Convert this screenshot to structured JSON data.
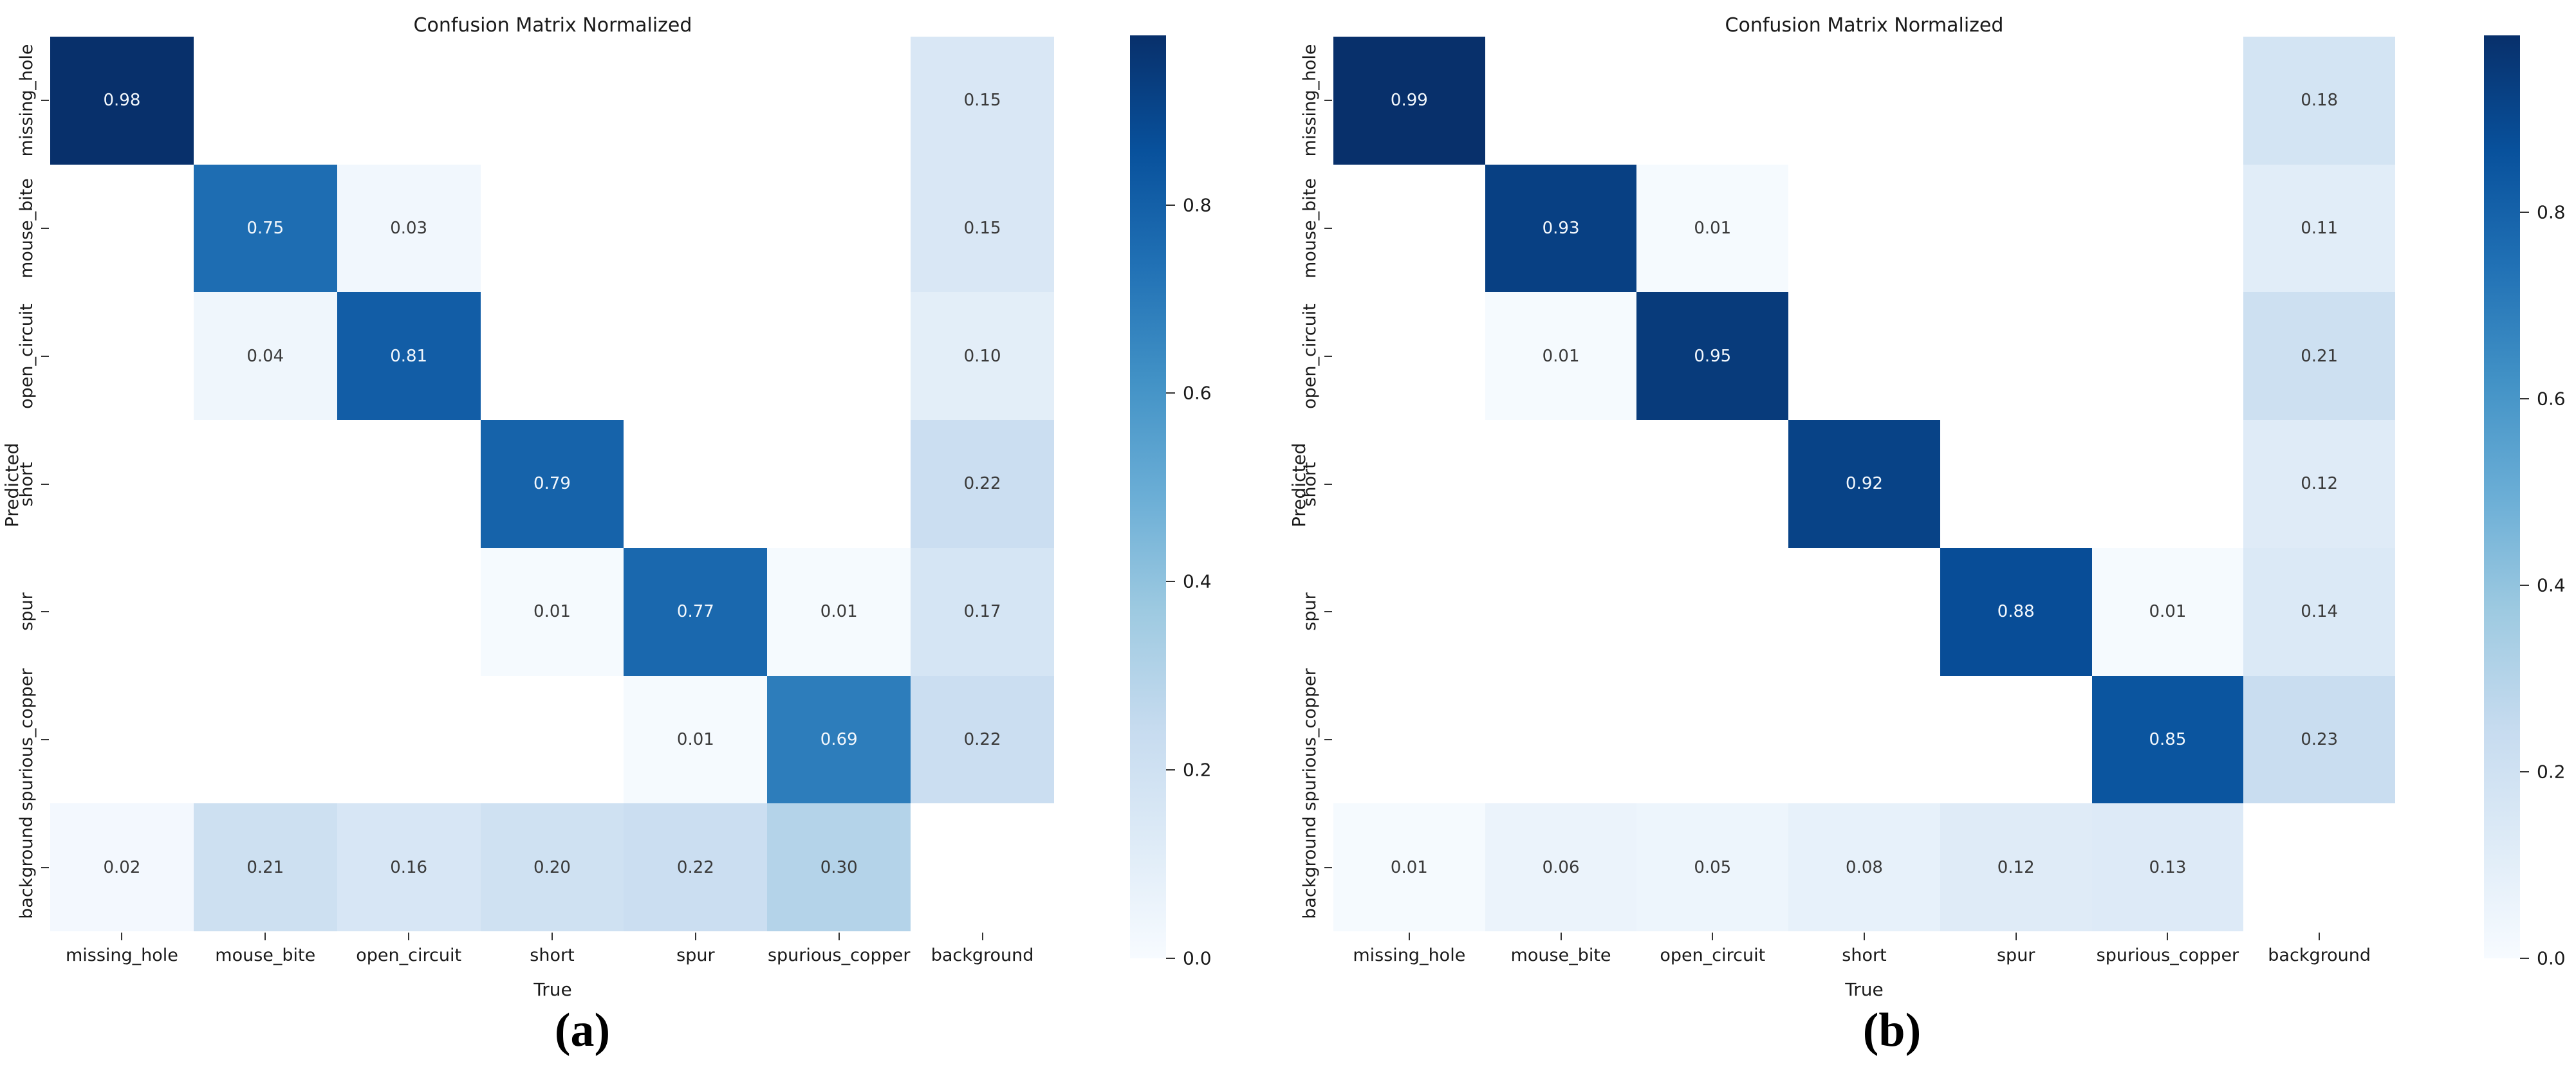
{
  "figure": {
    "caption_a": "(a)",
    "caption_b": "(b)"
  },
  "colormap_stops": [
    "#f7fbff",
    "#deebf7",
    "#c6dbef",
    "#9ecae1",
    "#6baed6",
    "#4292c6",
    "#2171b5",
    "#08519c",
    "#08306b"
  ],
  "chart_data": [
    {
      "type": "heatmap",
      "panel": "a",
      "title": "Confusion Matrix Normalized",
      "xlabel": "True",
      "ylabel": "Predicted",
      "categories": [
        "missing_hole",
        "mouse_bite",
        "open_circuit",
        "short",
        "spur",
        "spurious_copper",
        "background"
      ],
      "vmin": 0.0,
      "vmax": 0.98,
      "colorbar_ticks": [
        0.8,
        0.6,
        0.4,
        0.2,
        0.0
      ],
      "legend_position": "right",
      "grid": false,
      "matrix": [
        [
          0.98,
          null,
          null,
          null,
          null,
          null,
          0.15
        ],
        [
          null,
          0.75,
          0.03,
          null,
          null,
          null,
          0.15
        ],
        [
          null,
          0.04,
          0.81,
          null,
          null,
          null,
          0.1
        ],
        [
          null,
          null,
          null,
          0.79,
          null,
          null,
          0.22
        ],
        [
          null,
          null,
          null,
          0.01,
          0.77,
          0.01,
          0.17
        ],
        [
          null,
          null,
          null,
          null,
          0.01,
          0.69,
          0.22
        ],
        [
          0.02,
          0.21,
          0.16,
          0.2,
          0.22,
          0.3,
          null
        ]
      ]
    },
    {
      "type": "heatmap",
      "panel": "b",
      "title": "Confusion Matrix Normalized",
      "xlabel": "True",
      "ylabel": "Predicted",
      "categories": [
        "missing_hole",
        "mouse_bite",
        "open_circuit",
        "short",
        "spur",
        "spurious_copper",
        "background"
      ],
      "vmin": 0.0,
      "vmax": 0.99,
      "colorbar_ticks": [
        0.8,
        0.6,
        0.4,
        0.2,
        0.0
      ],
      "legend_position": "right",
      "grid": false,
      "matrix": [
        [
          0.99,
          null,
          null,
          null,
          null,
          null,
          0.18
        ],
        [
          null,
          0.93,
          0.01,
          null,
          null,
          null,
          0.11
        ],
        [
          null,
          0.01,
          0.95,
          null,
          null,
          null,
          0.21
        ],
        [
          null,
          null,
          null,
          0.92,
          null,
          null,
          0.12
        ],
        [
          null,
          null,
          null,
          null,
          0.88,
          0.01,
          0.14
        ],
        [
          null,
          null,
          null,
          null,
          null,
          0.85,
          0.23
        ],
        [
          0.01,
          0.06,
          0.05,
          0.08,
          0.12,
          0.13,
          null
        ]
      ]
    }
  ]
}
